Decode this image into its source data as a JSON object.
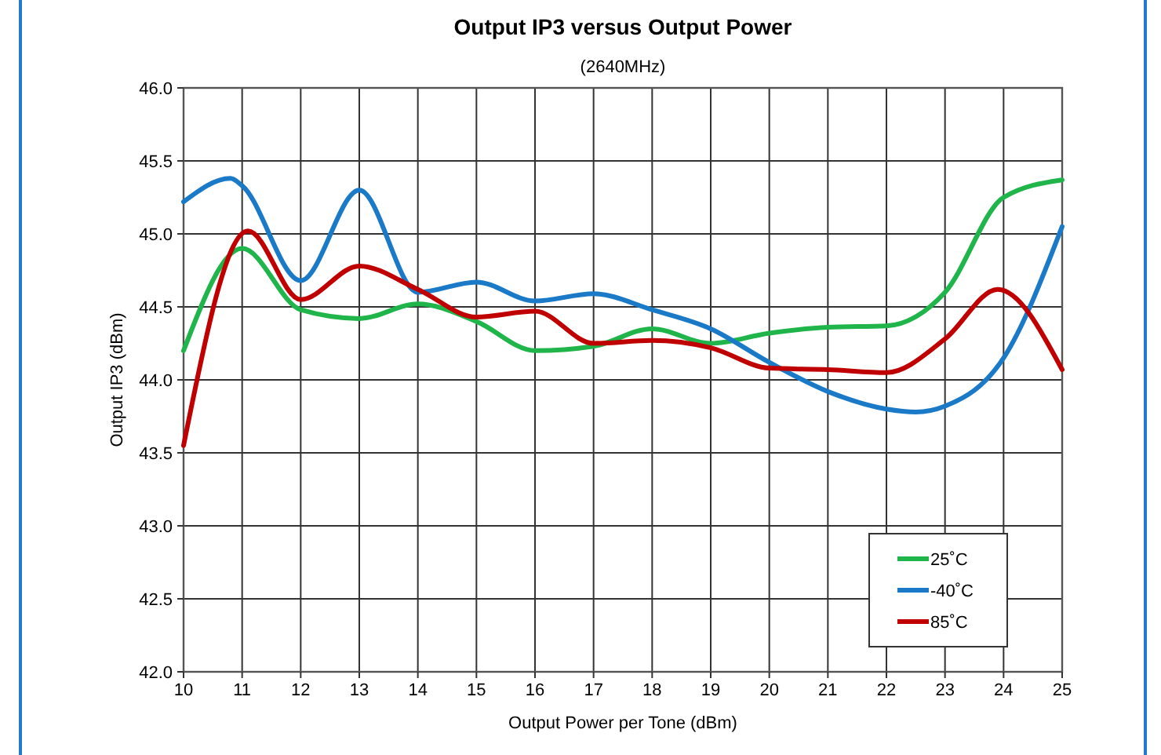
{
  "chart_data": {
    "type": "line",
    "title": "Output IP3 versus Output Power",
    "subtitle": "(2640MHz)",
    "xlabel": "Output Power per Tone (dBm)",
    "ylabel": "Output IP3 (dBm)",
    "xlim": [
      10,
      25
    ],
    "xticks": [
      10,
      11,
      12,
      13,
      14,
      15,
      16,
      17,
      18,
      19,
      20,
      21,
      22,
      23,
      24,
      25
    ],
    "ylim": [
      42,
      46
    ],
    "yticks": [
      {
        "value": 42,
        "label": "42.0"
      },
      {
        "value": 42.5,
        "label": "42.5"
      },
      {
        "value": 43,
        "label": "43.0"
      },
      {
        "value": 43.5,
        "label": "43.5"
      },
      {
        "value": 44,
        "label": "44.0"
      },
      {
        "value": 44.5,
        "label": "44.5"
      },
      {
        "value": 45,
        "label": "45.0"
      },
      {
        "value": 45.5,
        "label": "45.5"
      },
      {
        "value": 46,
        "label": "46.0"
      }
    ],
    "grid": true,
    "legend": "bottom right",
    "line_style": "solid",
    "marker": "none",
    "series": [
      {
        "name": "25˚C",
        "color": "#1fb54a",
        "x": [
          10,
          11,
          12,
          13,
          14,
          15,
          16,
          17,
          18,
          19,
          20,
          21,
          22,
          23,
          24,
          25
        ],
        "values": [
          44.2,
          44.9,
          44.48,
          44.42,
          44.52,
          44.4,
          44.2,
          44.23,
          44.35,
          44.25,
          44.32,
          44.36,
          44.37,
          44.6,
          45.25,
          45.37
        ]
      },
      {
        "name": "-40˚C",
        "color": "#1a7ac8",
        "x": [
          10,
          10.8,
          11,
          12,
          13,
          14,
          15,
          16,
          17,
          18,
          19,
          20,
          21,
          22,
          22.5,
          23,
          24,
          25
        ],
        "values": [
          45.22,
          45.38,
          45.33,
          44.68,
          45.3,
          44.6,
          44.67,
          44.54,
          44.59,
          44.48,
          44.35,
          44.12,
          43.92,
          43.8,
          43.78,
          43.82,
          44.15,
          45.05
        ]
      },
      {
        "name": "85˚C",
        "color": "#c00000",
        "x": [
          10,
          11.1,
          12,
          13,
          14,
          15,
          16,
          17,
          18,
          19,
          20,
          21,
          22,
          23,
          23.9,
          25
        ],
        "values": [
          43.55,
          45.02,
          44.55,
          44.78,
          44.62,
          44.43,
          44.47,
          44.25,
          44.27,
          44.22,
          44.08,
          44.07,
          44.05,
          44.28,
          44.62,
          44.07
        ]
      }
    ]
  }
}
